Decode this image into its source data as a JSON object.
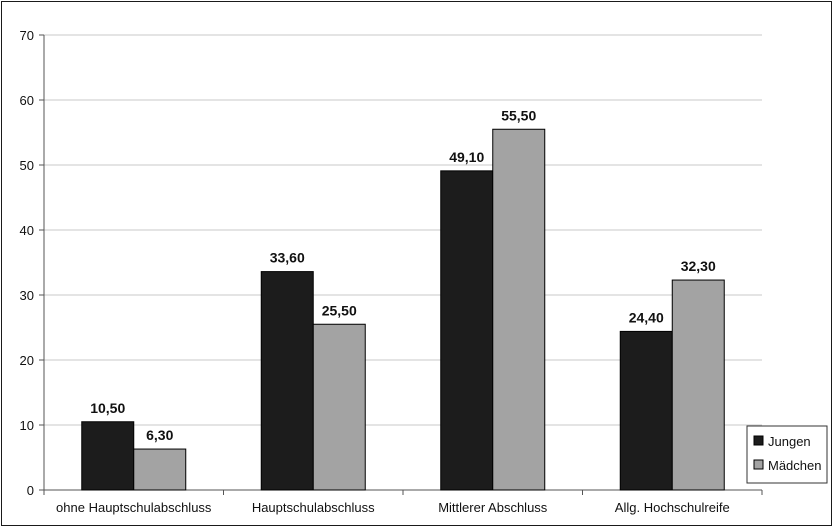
{
  "chart_data": {
    "type": "bar",
    "categories": [
      "ohne Hauptschulabschluss",
      "Hauptschulabschluss",
      "Mittlerer Abschluss",
      "Allg. Hochschulreife"
    ],
    "series": [
      {
        "name": "Jungen",
        "values": [
          10.5,
          33.6,
          49.1,
          24.4
        ],
        "labels": [
          "10,50",
          "33,60",
          "49,10",
          "24,40"
        ],
        "color": "#1c1c1c"
      },
      {
        "name": "Mädchen",
        "values": [
          6.3,
          25.5,
          55.5,
          32.3
        ],
        "labels": [
          "6,30",
          "25,50",
          "55,50",
          "32,30"
        ],
        "color": "#a3a3a3"
      }
    ],
    "ylim": [
      0,
      70
    ],
    "yticks": [
      0,
      10,
      20,
      30,
      40,
      50,
      60,
      70
    ],
    "ytick_labels": [
      "0",
      "10",
      "20",
      "30",
      "40",
      "50",
      "60",
      "70"
    ],
    "grid": true,
    "legend_position": "bottom-right",
    "title": "",
    "xlabel": "",
    "ylabel": ""
  }
}
